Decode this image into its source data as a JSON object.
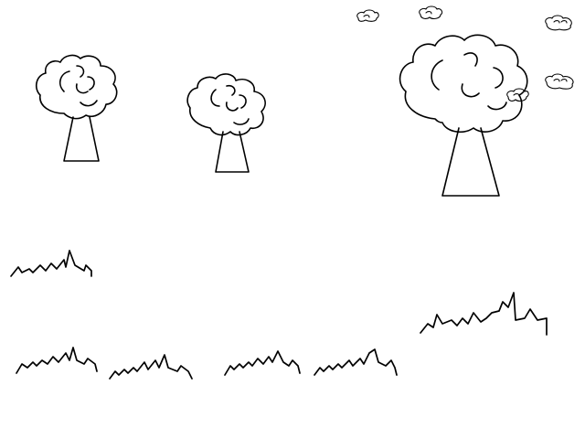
{
  "scene": {
    "background_color": "#ffffff",
    "line_color": "#000000",
    "trees": [
      {
        "id": "tree-1",
        "size": "small"
      },
      {
        "id": "tree-2",
        "size": "small"
      },
      {
        "id": "tree-3",
        "size": "large"
      }
    ],
    "clouds": [
      {
        "id": "cloud-1"
      },
      {
        "id": "cloud-2"
      },
      {
        "id": "cloud-3"
      },
      {
        "id": "cloud-4"
      },
      {
        "id": "cloud-5"
      }
    ],
    "grass_tufts": [
      {
        "id": "grass-1"
      },
      {
        "id": "grass-2"
      },
      {
        "id": "grass-3"
      },
      {
        "id": "grass-4"
      },
      {
        "id": "grass-5"
      },
      {
        "id": "grass-6"
      },
      {
        "id": "grass-7"
      }
    ]
  }
}
